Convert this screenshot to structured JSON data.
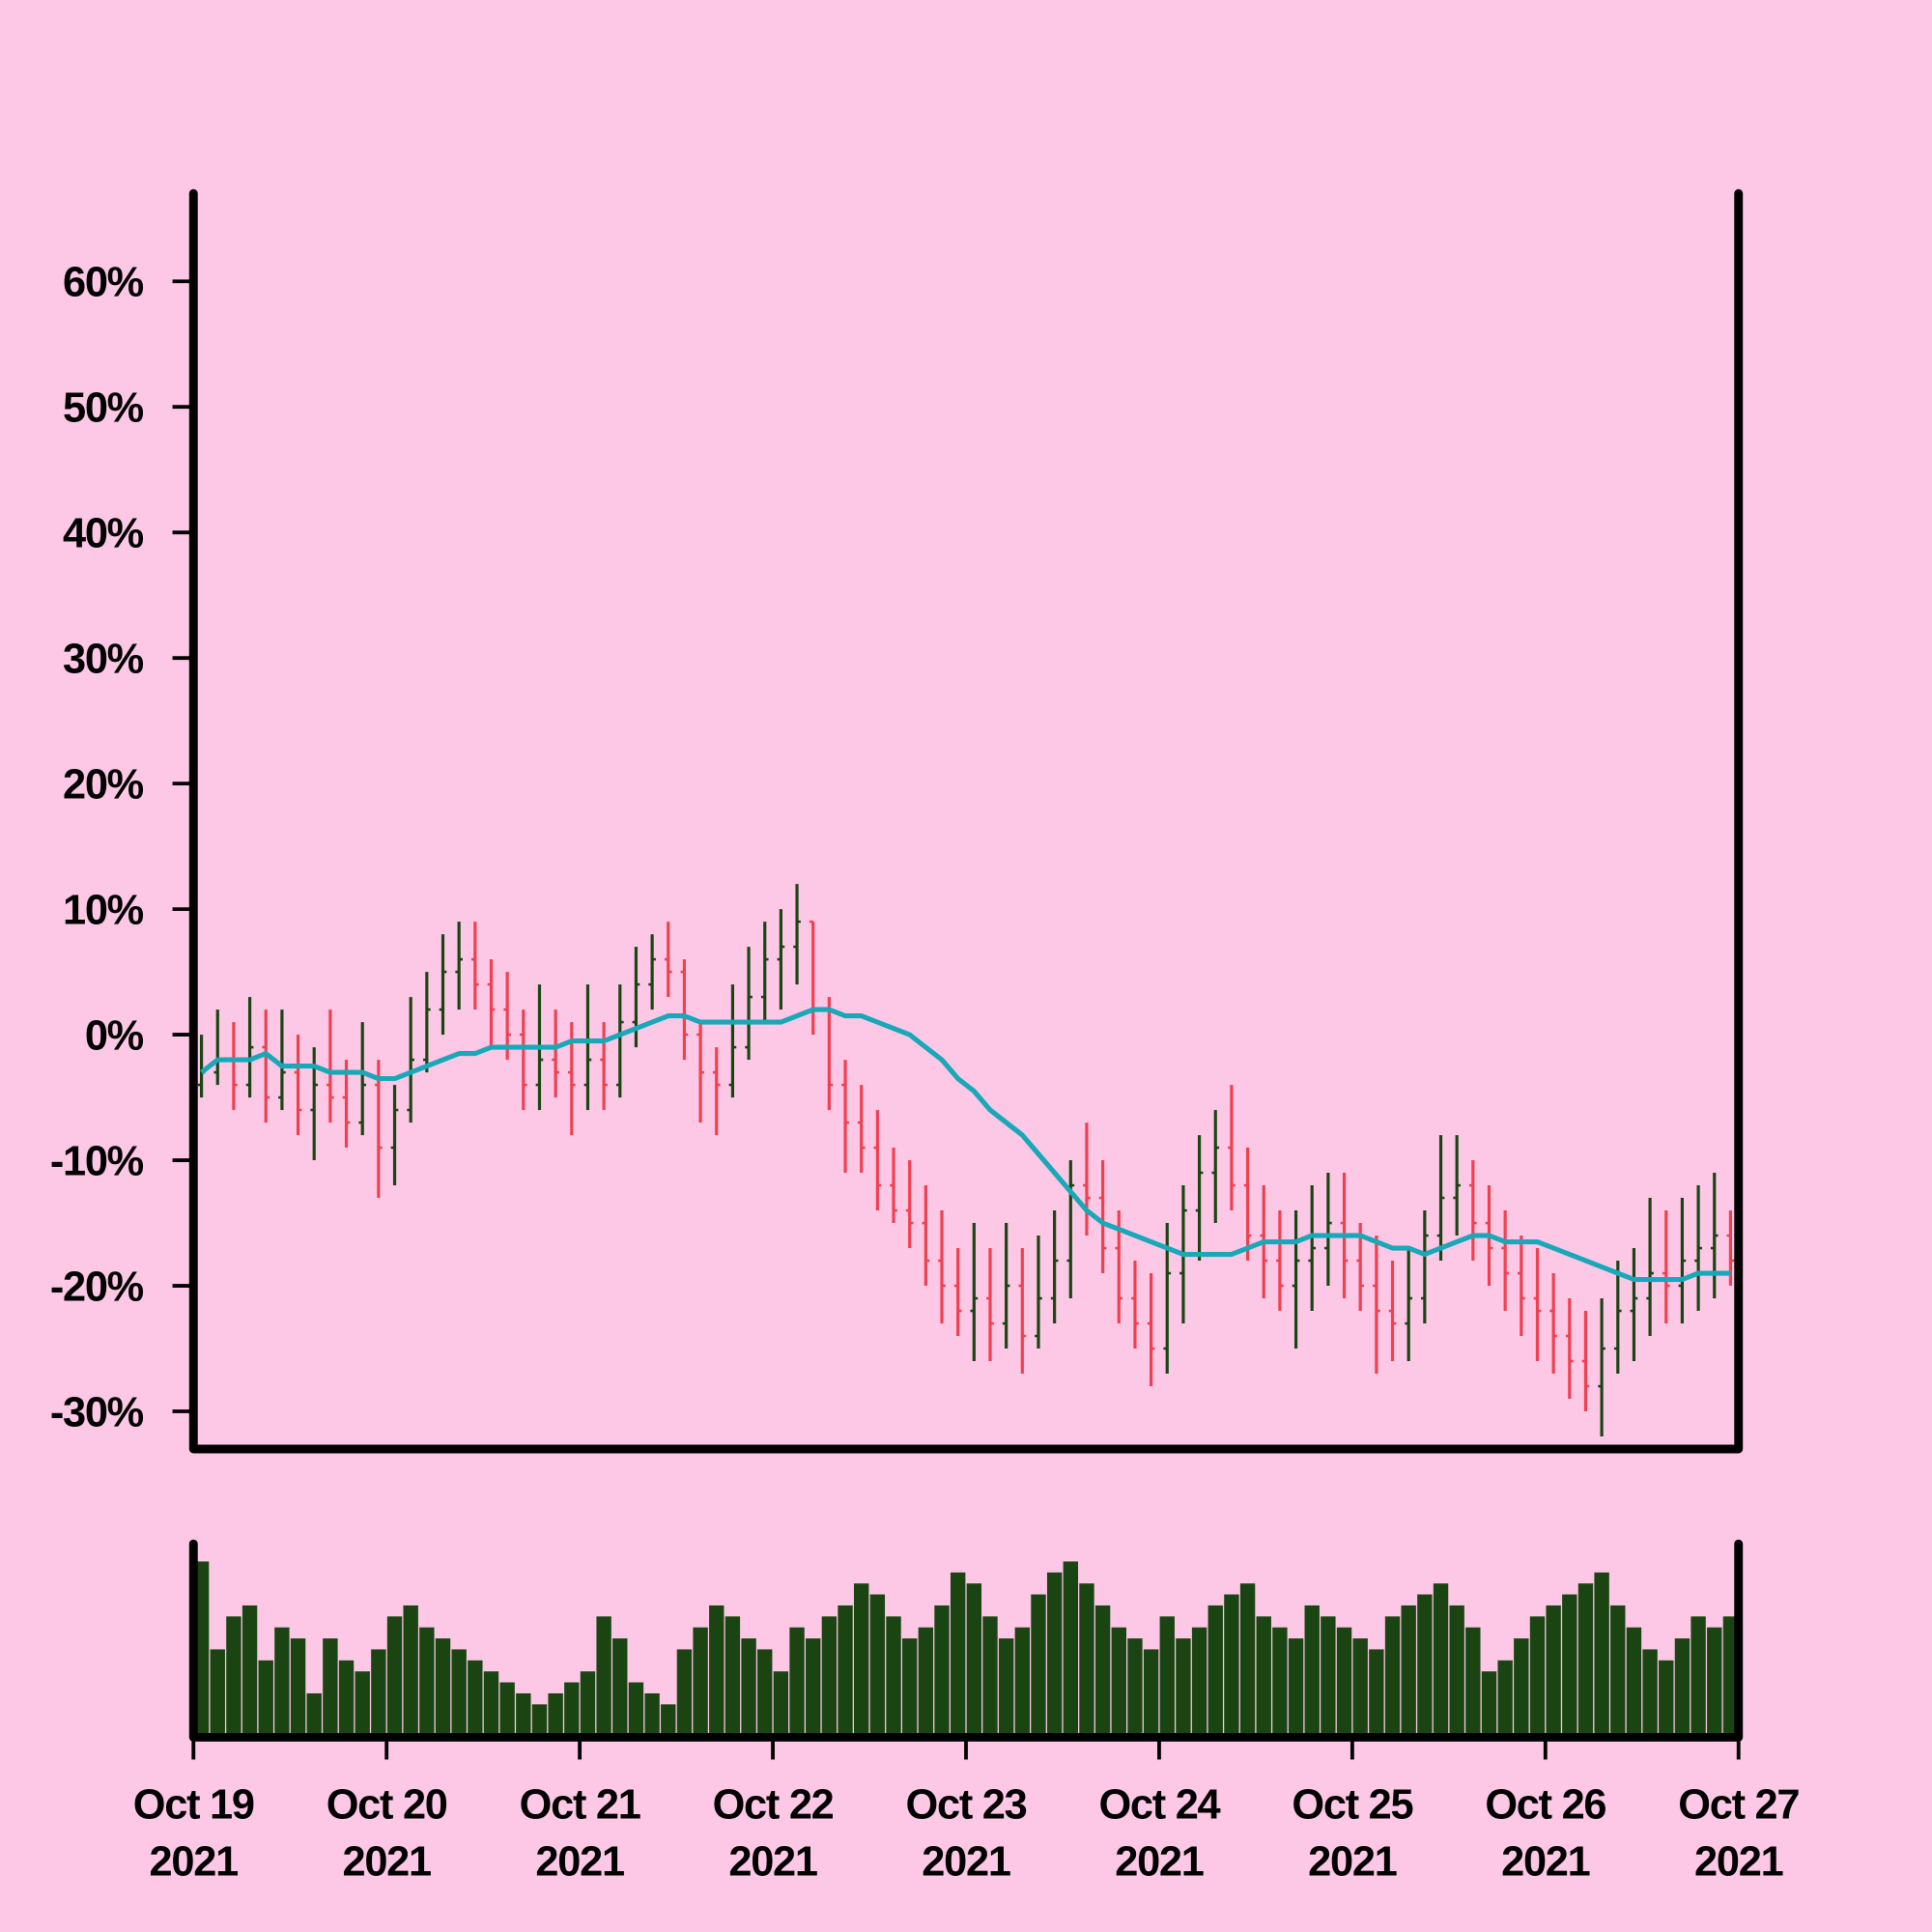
{
  "chart_data": {
    "type": "ohlc",
    "x": [
      "2021-10-19T00:00",
      "2021-10-19T02:00",
      "2021-10-19T04:00",
      "2021-10-19T06:00",
      "2021-10-19T08:00",
      "2021-10-19T10:00",
      "2021-10-19T12:00",
      "2021-10-19T14:00",
      "2021-10-19T16:00",
      "2021-10-19T18:00",
      "2021-10-19T20:00",
      "2021-10-19T22:00",
      "2021-10-20T00:00",
      "2021-10-20T02:00",
      "2021-10-20T04:00",
      "2021-10-20T06:00",
      "2021-10-20T08:00",
      "2021-10-20T10:00",
      "2021-10-20T12:00",
      "2021-10-20T14:00",
      "2021-10-20T16:00",
      "2021-10-20T18:00",
      "2021-10-20T20:00",
      "2021-10-20T22:00",
      "2021-10-21T00:00",
      "2021-10-21T02:00",
      "2021-10-21T04:00",
      "2021-10-21T06:00",
      "2021-10-21T08:00",
      "2021-10-21T10:00",
      "2021-10-21T12:00",
      "2021-10-21T14:00",
      "2021-10-21T16:00",
      "2021-10-21T18:00",
      "2021-10-21T20:00",
      "2021-10-21T22:00",
      "2021-10-22T00:00",
      "2021-10-22T02:00",
      "2021-10-22T04:00",
      "2021-10-22T06:00",
      "2021-10-22T08:00",
      "2021-10-22T10:00",
      "2021-10-22T12:00",
      "2021-10-22T14:00",
      "2021-10-22T16:00",
      "2021-10-22T18:00",
      "2021-10-22T20:00",
      "2021-10-22T22:00",
      "2021-10-23T00:00",
      "2021-10-23T02:00",
      "2021-10-23T04:00",
      "2021-10-23T06:00",
      "2021-10-23T08:00",
      "2021-10-23T10:00",
      "2021-10-23T12:00",
      "2021-10-23T14:00",
      "2021-10-23T16:00",
      "2021-10-23T18:00",
      "2021-10-23T20:00",
      "2021-10-23T22:00",
      "2021-10-24T00:00",
      "2021-10-24T02:00",
      "2021-10-24T04:00",
      "2021-10-24T06:00",
      "2021-10-24T08:00",
      "2021-10-24T10:00",
      "2021-10-24T12:00",
      "2021-10-24T14:00",
      "2021-10-24T16:00",
      "2021-10-24T18:00",
      "2021-10-24T20:00",
      "2021-10-24T22:00",
      "2021-10-25T00:00",
      "2021-10-25T02:00",
      "2021-10-25T04:00",
      "2021-10-25T06:00",
      "2021-10-25T08:00",
      "2021-10-25T10:00",
      "2021-10-25T12:00",
      "2021-10-25T14:00",
      "2021-10-25T16:00",
      "2021-10-25T18:00",
      "2021-10-25T20:00",
      "2021-10-25T22:00",
      "2021-10-26T00:00",
      "2021-10-26T02:00",
      "2021-10-26T04:00",
      "2021-10-26T06:00",
      "2021-10-26T08:00",
      "2021-10-26T10:00",
      "2021-10-26T12:00",
      "2021-10-26T14:00",
      "2021-10-26T16:00",
      "2021-10-26T18:00",
      "2021-10-26T20:00",
      "2021-10-26T22:00"
    ],
    "open": [
      -4,
      -3,
      -2,
      -4,
      -1,
      -5,
      -3,
      -6,
      -4,
      -5,
      -7,
      -4,
      -9,
      -6,
      -2,
      2,
      5,
      6,
      4,
      2,
      0,
      -4,
      -2,
      -3,
      -4,
      -2,
      -4,
      1,
      4,
      6,
      5,
      0,
      -3,
      -4,
      -1,
      3,
      6,
      7,
      9,
      2,
      -4,
      -7,
      -9,
      -12,
      -14,
      -15,
      -18,
      -20,
      -22,
      -21,
      -23,
      -20,
      -24,
      -21,
      -18,
      -12,
      -13,
      -17,
      -21,
      -23,
      -25,
      -19,
      -14,
      -11,
      -9,
      -12,
      -16,
      -18,
      -20,
      -18,
      -17,
      -15,
      -18,
      -20,
      -22,
      -23,
      -21,
      -16,
      -13,
      -12,
      -15,
      -17,
      -19,
      -21,
      -22,
      -24,
      -26,
      -28,
      -25,
      -22,
      -21,
      -19,
      -20,
      -18,
      -17,
      -16
    ],
    "high": [
      0,
      2,
      1,
      3,
      2,
      2,
      0,
      -1,
      2,
      -2,
      1,
      -2,
      -4,
      3,
      5,
      8,
      9,
      9,
      6,
      5,
      2,
      4,
      2,
      1,
      4,
      1,
      4,
      7,
      8,
      9,
      6,
      1,
      -1,
      4,
      7,
      9,
      10,
      12,
      9,
      3,
      -2,
      -4,
      -6,
      -9,
      -10,
      -12,
      -14,
      -17,
      -15,
      -17,
      -15,
      -17,
      -16,
      -14,
      -10,
      -7,
      -10,
      -14,
      -18,
      -19,
      -15,
      -12,
      -8,
      -6,
      -4,
      -9,
      -12,
      -14,
      -14,
      -12,
      -11,
      -11,
      -15,
      -16,
      -18,
      -17,
      -14,
      -8,
      -8,
      -10,
      -12,
      -14,
      -16,
      -17,
      -19,
      -21,
      -22,
      -21,
      -18,
      -17,
      -13,
      -14,
      -13,
      -12,
      -11,
      -14
    ],
    "low": [
      -5,
      -4,
      -6,
      -5,
      -7,
      -6,
      -8,
      -10,
      -7,
      -9,
      -8,
      -13,
      -12,
      -7,
      -3,
      0,
      2,
      2,
      -1,
      -2,
      -6,
      -6,
      -5,
      -8,
      -6,
      -6,
      -5,
      -1,
      2,
      3,
      -2,
      -7,
      -8,
      -5,
      -2,
      1,
      2,
      4,
      0,
      -6,
      -11,
      -11,
      -14,
      -15,
      -17,
      -20,
      -23,
      -24,
      -26,
      -26,
      -25,
      -27,
      -25,
      -23,
      -21,
      -16,
      -19,
      -23,
      -25,
      -28,
      -27,
      -23,
      -18,
      -15,
      -14,
      -18,
      -21,
      -22,
      -25,
      -22,
      -20,
      -21,
      -22,
      -27,
      -26,
      -26,
      -23,
      -18,
      -16,
      -18,
      -20,
      -22,
      -24,
      -26,
      -27,
      -29,
      -30,
      -32,
      -27,
      -26,
      -24,
      -23,
      -23,
      -22,
      -21,
      -20
    ],
    "close": [
      -3,
      -2,
      -4,
      -1,
      -5,
      -3,
      -6,
      -4,
      -5,
      -7,
      -4,
      -9,
      -6,
      -2,
      2,
      5,
      6,
      4,
      2,
      0,
      -4,
      -2,
      -3,
      -4,
      -2,
      -4,
      1,
      4,
      6,
      5,
      0,
      -3,
      -4,
      -1,
      3,
      6,
      7,
      9,
      2,
      -4,
      -7,
      -9,
      -12,
      -14,
      -15,
      -18,
      -20,
      -22,
      -21,
      -23,
      -20,
      -24,
      -21,
      -18,
      -12,
      -13,
      -17,
      -21,
      -23,
      -25,
      -19,
      -14,
      -11,
      -9,
      -12,
      -16,
      -18,
      -20,
      -18,
      -17,
      -15,
      -18,
      -20,
      -22,
      -23,
      -21,
      -16,
      -13,
      -12,
      -15,
      -17,
      -19,
      -21,
      -22,
      -24,
      -26,
      -28,
      -25,
      -22,
      -21,
      -19,
      -20,
      -18,
      -17,
      -16,
      -18
    ],
    "moving_average": [
      -3,
      -2,
      -2,
      -2,
      -1.5,
      -2.5,
      -2.5,
      -2.5,
      -3,
      -3,
      -3,
      -3.5,
      -3.5,
      -3,
      -2.5,
      -2,
      -1.5,
      -1.5,
      -1,
      -1,
      -1,
      -1,
      -1,
      -0.5,
      -0.5,
      -0.5,
      0,
      0.5,
      1,
      1.5,
      1.5,
      1,
      1,
      1,
      1,
      1,
      1,
      1.5,
      2,
      2,
      1.5,
      1.5,
      1,
      0.5,
      0,
      -1,
      -2,
      -3.5,
      -4.5,
      -6,
      -7,
      -8,
      -9.5,
      -11,
      -12.5,
      -14,
      -15,
      -15.5,
      -16,
      -16.5,
      -17,
      -17.5,
      -17.5,
      -17.5,
      -17.5,
      -17,
      -16.5,
      -16.5,
      -16.5,
      -16,
      -16,
      -16,
      -16,
      -16.5,
      -17,
      -17,
      -17.5,
      -17,
      -16.5,
      -16,
      -16,
      -16.5,
      -16.5,
      -16.5,
      -17,
      -17.5,
      -18,
      -18.5,
      -19,
      -19.5,
      -19.5,
      -19.5,
      -19.5,
      -19,
      -19,
      -19
    ],
    "volume": [
      80,
      40,
      55,
      60,
      35,
      50,
      45,
      20,
      45,
      35,
      30,
      40,
      55,
      60,
      50,
      45,
      40,
      35,
      30,
      25,
      20,
      15,
      20,
      25,
      30,
      55,
      45,
      25,
      20,
      15,
      40,
      50,
      60,
      55,
      45,
      40,
      30,
      50,
      45,
      55,
      60,
      70,
      65,
      55,
      45,
      50,
      60,
      75,
      70,
      55,
      45,
      50,
      65,
      75,
      80,
      70,
      60,
      50,
      45,
      40,
      55,
      45,
      50,
      60,
      65,
      70,
      55,
      50,
      45,
      60,
      55,
      50,
      45,
      40,
      55,
      60,
      65,
      70,
      60,
      50,
      30,
      35,
      45,
      55,
      60,
      65,
      70,
      75,
      60,
      50,
      40,
      35,
      45,
      55,
      50,
      55
    ],
    "up_color": "#1a4512",
    "down_color": "#f0404f",
    "ma_color": "#18a8b8",
    "volume_color": "#1a4512",
    "xlim": [
      "2021-10-19T00:00",
      "2021-10-27T00:00"
    ],
    "xticks": [
      {
        "value": "2021-10-19T00:00",
        "label": "Oct 19\n2021"
      },
      {
        "value": "2021-10-20T00:00",
        "label": "Oct 20\n2021"
      },
      {
        "value": "2021-10-21T00:00",
        "label": "Oct 21\n2021"
      },
      {
        "value": "2021-10-22T00:00",
        "label": "Oct 22\n2021"
      },
      {
        "value": "2021-10-23T00:00",
        "label": "Oct 23\n2021"
      },
      {
        "value": "2021-10-24T00:00",
        "label": "Oct 24\n2021"
      },
      {
        "value": "2021-10-25T00:00",
        "label": "Oct 25\n2021"
      },
      {
        "value": "2021-10-26T00:00",
        "label": "Oct 26\n2021"
      },
      {
        "value": "2021-10-27T00:00",
        "label": "Oct 27\n2021"
      }
    ],
    "ylim": [
      -33,
      67
    ],
    "yticks": [
      {
        "value": -30,
        "label": "-30%"
      },
      {
        "value": -20,
        "label": "-20%"
      },
      {
        "value": -10,
        "label": "-10%"
      },
      {
        "value": 0,
        "label": "0%"
      },
      {
        "value": 10,
        "label": "10%"
      },
      {
        "value": 20,
        "label": "20%"
      },
      {
        "value": 30,
        "label": "30%"
      },
      {
        "value": 40,
        "label": "40%"
      },
      {
        "value": 50,
        "label": "50%"
      },
      {
        "value": 60,
        "label": "60%"
      }
    ]
  }
}
